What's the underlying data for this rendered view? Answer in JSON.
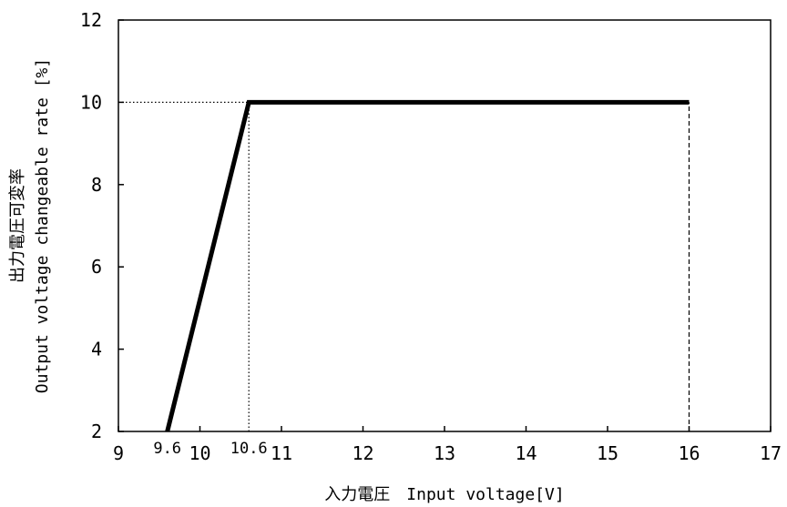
{
  "chart_data": {
    "type": "line",
    "title": "",
    "xlabel": "入力電圧　Input voltage[V]",
    "ylabel_line1": "出力電圧可変率",
    "ylabel_line2": "Output voltage changeable rate [%]",
    "xlim": [
      9,
      17
    ],
    "ylim": [
      2,
      12
    ],
    "x_ticks": [
      9,
      10,
      11,
      12,
      13,
      14,
      15,
      16,
      17
    ],
    "x_ticks_extra": [
      "9.6",
      "10.6"
    ],
    "y_ticks": [
      2,
      4,
      6,
      8,
      10,
      12
    ],
    "grid": false,
    "series": [
      {
        "x": [
          9.6,
          10.6,
          16
        ],
        "y": [
          2,
          10,
          10
        ]
      }
    ],
    "reference_lines": [
      {
        "style": "dotted",
        "from": [
          9,
          10
        ],
        "to": [
          10.6,
          10
        ]
      },
      {
        "style": "dotted",
        "from": [
          10.6,
          2
        ],
        "to": [
          10.6,
          10
        ]
      },
      {
        "style": "dashed",
        "from": [
          16,
          2
        ],
        "to": [
          16,
          10
        ]
      }
    ]
  }
}
